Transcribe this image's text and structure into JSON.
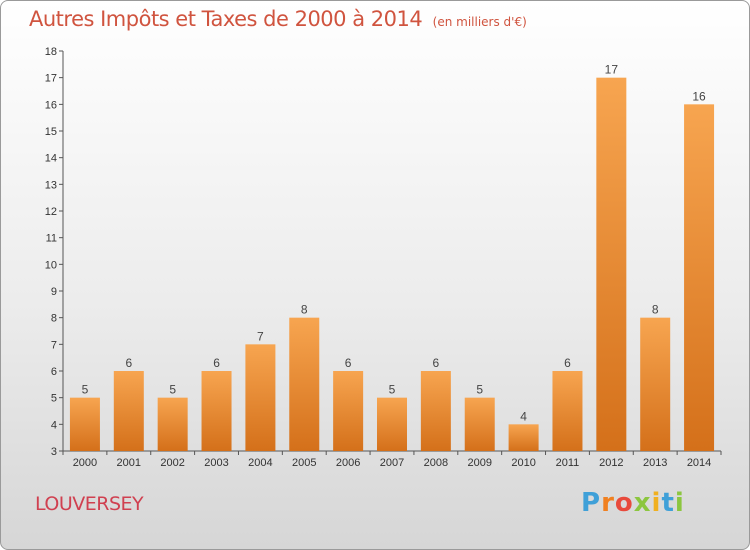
{
  "header": {
    "title": "Autres Impôts et Taxes de 2000 à 2014",
    "subtitle": "(en milliers d'€)"
  },
  "footer": {
    "place": "LOUVERSEY",
    "logo_text": "Proxiti"
  },
  "colors": {
    "bar_light": "#f7a550",
    "bar_dark": "#d4701a",
    "title": "#d0543f",
    "place": "#d04050",
    "logo": [
      "#3fa0d8",
      "#f08020",
      "#e84a3c",
      "#8cc63f",
      "#f0b020",
      "#3fa0d8",
      "#8cc63f"
    ]
  },
  "chart_data": {
    "type": "bar",
    "title": "Autres Impôts et Taxes de 2000 à 2014",
    "subtitle": "(en milliers d'€)",
    "xlabel": "",
    "ylabel": "",
    "categories": [
      "2000",
      "2001",
      "2002",
      "2003",
      "2004",
      "2005",
      "2006",
      "2007",
      "2008",
      "2009",
      "2010",
      "2011",
      "2012",
      "2013",
      "2014"
    ],
    "values": [
      5,
      6,
      5,
      6,
      7,
      8,
      6,
      5,
      6,
      5,
      4,
      6,
      17,
      8,
      16
    ],
    "ylim": [
      3,
      18
    ],
    "yticks": [
      3,
      4,
      5,
      6,
      7,
      8,
      9,
      10,
      11,
      12,
      13,
      14,
      15,
      16,
      17,
      18
    ],
    "grid": false,
    "data_labels": true
  }
}
